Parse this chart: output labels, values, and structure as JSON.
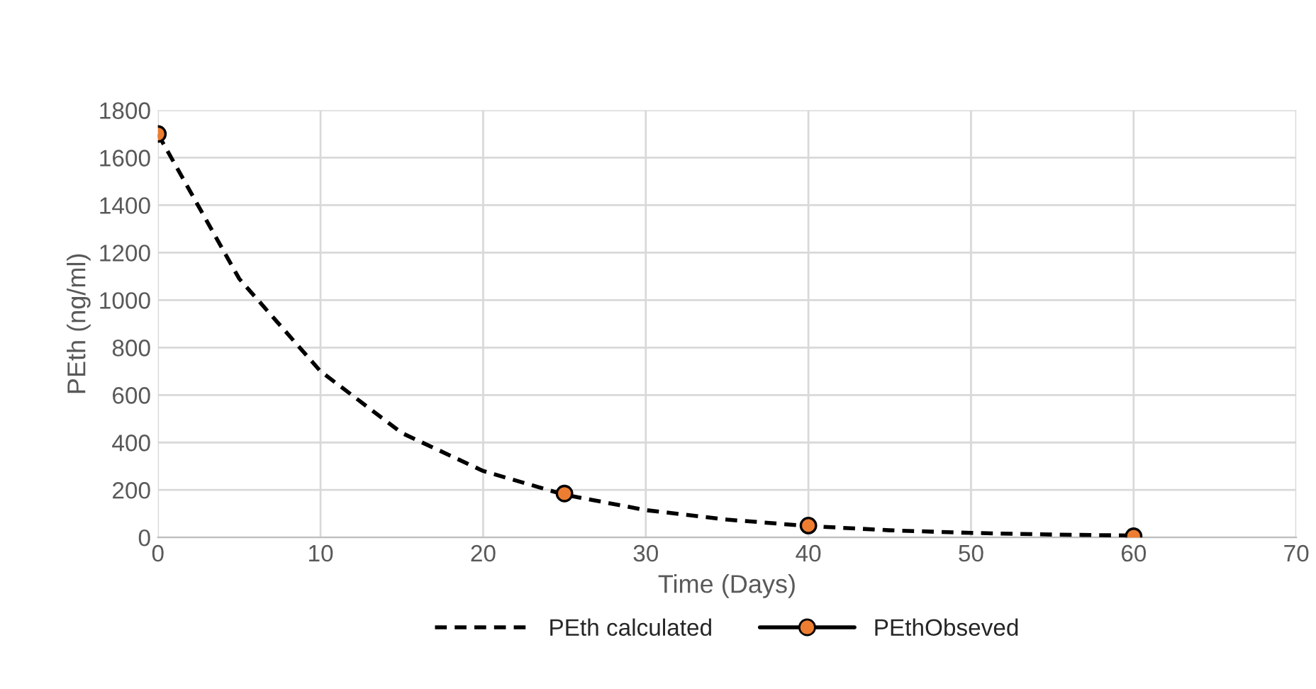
{
  "chart_data": {
    "type": "line",
    "xlabel": "Time (Days)",
    "ylabel": "PEth (ng/ml)",
    "xlim": [
      0,
      70
    ],
    "xticks": [
      0,
      10,
      20,
      30,
      40,
      50,
      60,
      70
    ],
    "ylim": [
      0,
      1800
    ],
    "yticks": [
      0,
      200,
      400,
      600,
      800,
      1000,
      1200,
      1400,
      1600,
      1800
    ],
    "grid": true,
    "legend": "bottom",
    "series": [
      {
        "name": "PEth calculated",
        "color": "#000000",
        "line_style": "dashed",
        "marker": "none",
        "x": [
          0,
          5,
          10,
          15,
          20,
          25,
          30,
          35,
          40,
          45,
          50,
          55,
          60
        ],
        "values": [
          1700,
          1090,
          700,
          440,
          280,
          180,
          115,
          75,
          48,
          30,
          19,
          12,
          8
        ]
      },
      {
        "name": "PEthObseved",
        "type": "scatter",
        "color": "#ed7d31",
        "marker": "circle",
        "x": [
          0,
          25,
          40,
          60
        ],
        "values": [
          1700,
          185,
          50,
          5
        ]
      }
    ]
  }
}
